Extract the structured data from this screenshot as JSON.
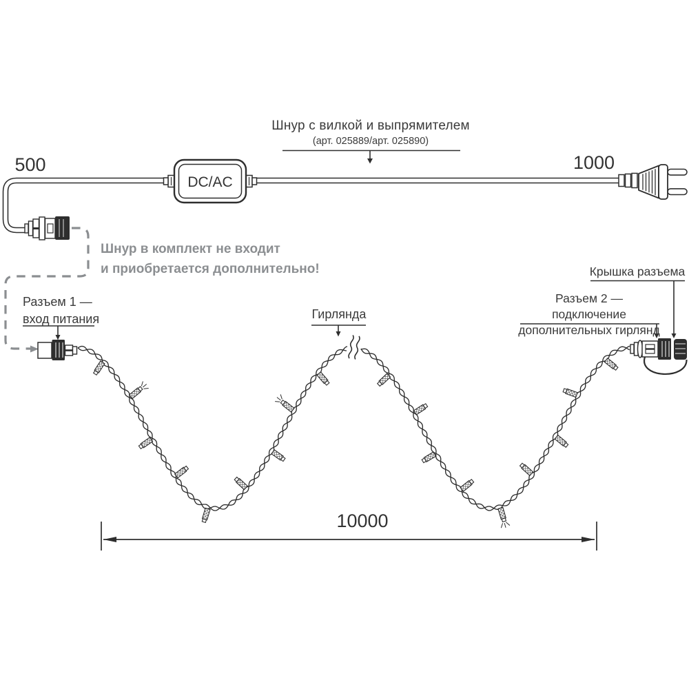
{
  "title_block": {
    "cord_label": "Шнур с вилкой и выпрямителем",
    "cord_sublabel": "(арт. 025889/арт. 025890)"
  },
  "dimensions": {
    "left_cord_mm": "500",
    "right_cord_mm": "1000",
    "garland_length_mm": "10000"
  },
  "converter": {
    "label": "DC/AC"
  },
  "note": {
    "line1": "Шнур в комплект не входит",
    "line2": "и приобретается дополнительно!"
  },
  "connector1": {
    "line1": "Разъем 1 —",
    "line2": "вход питания"
  },
  "garland": {
    "label": "Гирлянда"
  },
  "connector2": {
    "line1": "Разъем 2 — подключение",
    "line2": "дополнительных гирлянд"
  },
  "cap": {
    "label": "Крышка разъема"
  },
  "colors": {
    "ink": "#2e2e2e",
    "gray": "#8b8e91",
    "background": "#ffffff"
  }
}
